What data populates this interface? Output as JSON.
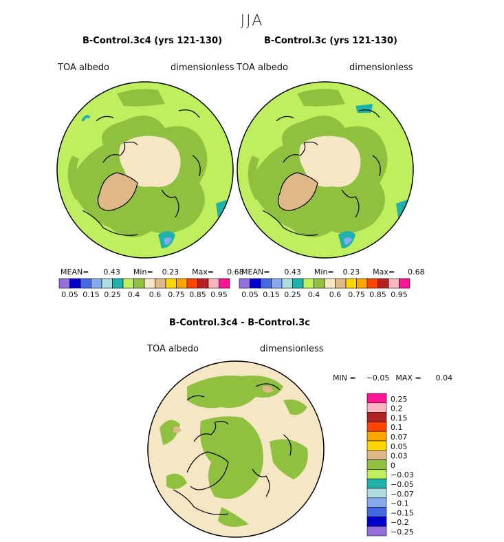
{
  "season": "JJA",
  "panels": [
    {
      "title": "B-Control.3c4 (yrs 121-130)",
      "field": "TOA albedo",
      "units": "dimensionless",
      "stats": {
        "mean_label": "MEAN=",
        "mean": "0.43",
        "min_label": "Min=",
        "min": "0.23",
        "max_label": "Max=",
        "max": "0.68"
      }
    },
    {
      "title": "B-Control.3c (yrs 121-130)",
      "field": "TOA albedo",
      "units": "dimensionless",
      "stats": {
        "mean_label": "MEAN=",
        "mean": "0.43",
        "min_label": "Min=",
        "min": "0.23",
        "max_label": "Max=",
        "max": "0.68"
      }
    }
  ],
  "colorbar": {
    "colors": [
      "#9370DB",
      "#0000CD",
      "#4169E1",
      "#87A9F0",
      "#AEDDE0",
      "#20B2AA",
      "#BFEF5F",
      "#90C040",
      "#F5E6C4",
      "#DEB887",
      "#FFD700",
      "#FFA500",
      "#FF4500",
      "#B22222",
      "#FFB6C1",
      "#FF1493"
    ],
    "ticks": [
      "0.05",
      "0.15",
      "0.25",
      "0.4",
      "0.6",
      "0.75",
      "0.85",
      "0.95"
    ]
  },
  "diff": {
    "title": "B-Control.3c4 - B-Control.3c",
    "field": "TOA albedo",
    "units": "dimensionless",
    "min_label": "MIN =",
    "min": "−0.05",
    "max_label": "MAX =",
    "max": "0.04",
    "legend": [
      {
        "color": "#FF1493",
        "label": "0.25"
      },
      {
        "color": "#FFB6C1",
        "label": "0.2"
      },
      {
        "color": "#B22222",
        "label": "0.15"
      },
      {
        "color": "#FF4500",
        "label": "0.1"
      },
      {
        "color": "#FFA500",
        "label": "0.07"
      },
      {
        "color": "#FFD700",
        "label": "0.05"
      },
      {
        "color": "#DEB887",
        "label": "0.03"
      },
      {
        "color": "#90C040",
        "label": "0"
      },
      {
        "color": "#BFEF5F",
        "label": "−0.03"
      },
      {
        "color": "#20B2AA",
        "label": "−0.05"
      },
      {
        "color": "#AEDDE0",
        "label": "−0.07"
      },
      {
        "color": "#87A9F0",
        "label": "−0.1"
      },
      {
        "color": "#4169E1",
        "label": "−0.15"
      },
      {
        "color": "#0000CD",
        "label": "−0.2"
      },
      {
        "color": "#9370DB",
        "label": "−0.25"
      }
    ]
  },
  "colors": {
    "ocean_green": "#BFEF5F",
    "mid_green": "#90C040",
    "ice": "#F5E6C4",
    "greenland": "#DEB887",
    "teal": "#20B2AA",
    "blue": "#87A9F0"
  }
}
